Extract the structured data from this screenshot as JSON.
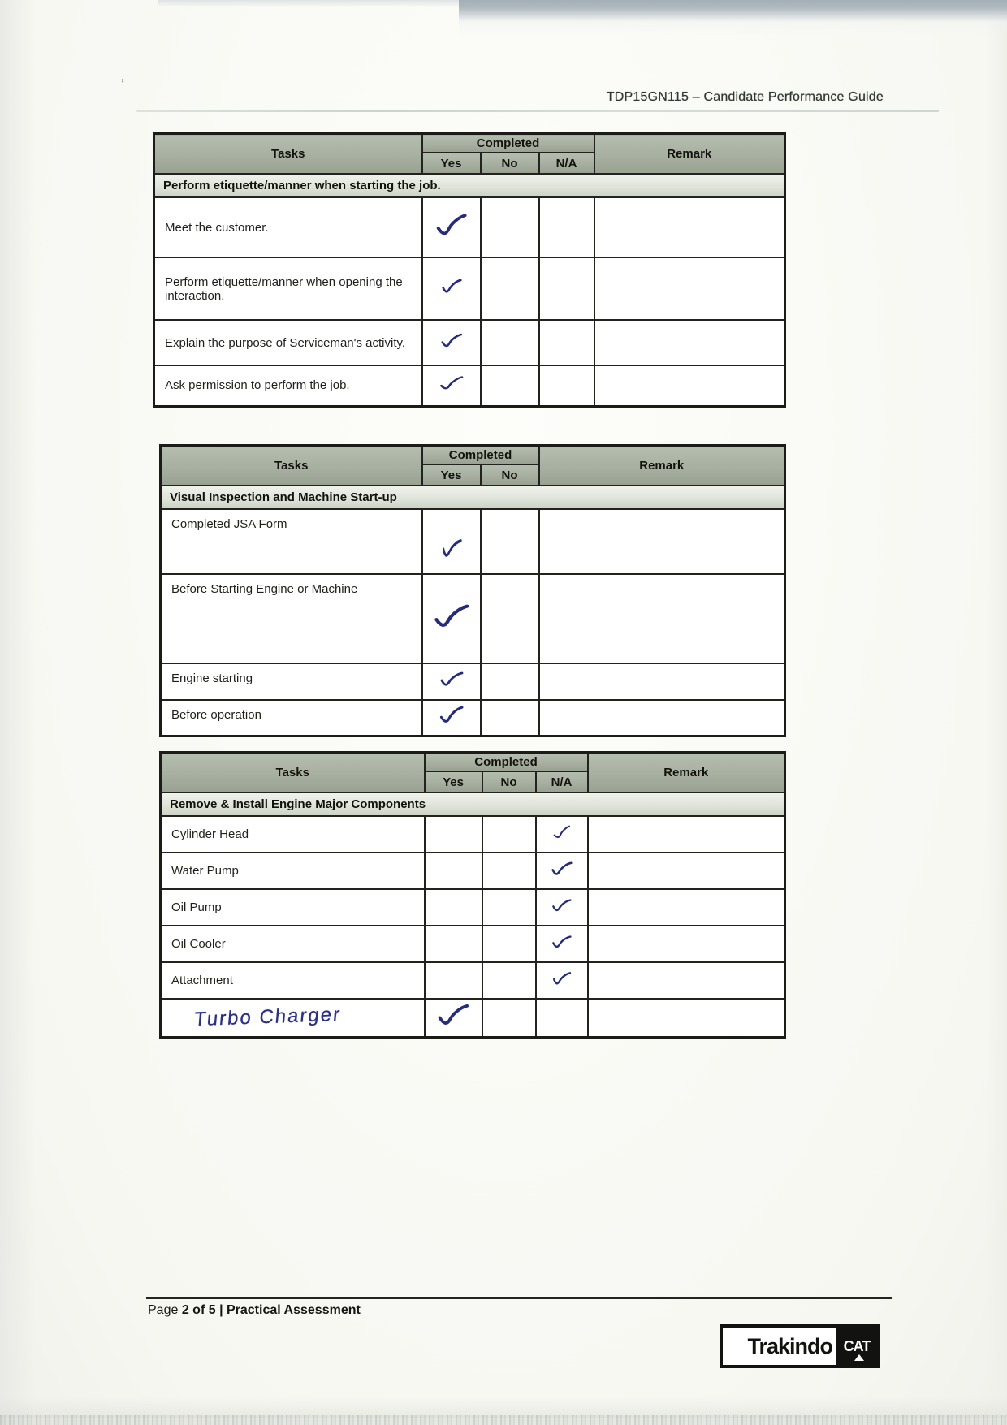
{
  "header": {
    "title": "TDP15GN115 – Candidate Performance Guide"
  },
  "footer": {
    "prefix": "Page",
    "rest": "2 of 5 | Practical Assessment"
  },
  "logo": {
    "brand": "Trakindo",
    "mark": "CAT"
  },
  "colors": {
    "ink_blue": "#252c7e",
    "header_green": "#a7afa0",
    "section_tint": "#dde1d6",
    "border_dark": "#22221f"
  },
  "tables": [
    {
      "headers": {
        "tasks": "Tasks",
        "completed": "Completed",
        "yes": "Yes",
        "no": "No",
        "na": "N/A",
        "remark": "Remark"
      },
      "check_columns": [
        "yes",
        "no",
        "na"
      ],
      "section": "Perform etiquette/manner when starting the job.",
      "rows": [
        {
          "task": "Meet the customer.",
          "yes": true,
          "no": false,
          "na": false,
          "remark": ""
        },
        {
          "task": "Perform etiquette/manner when opening the interaction.",
          "yes": true,
          "no": false,
          "na": false,
          "remark": ""
        },
        {
          "task": "Explain the purpose of Serviceman's activity.",
          "yes": true,
          "no": false,
          "na": false,
          "remark": ""
        },
        {
          "task": "Ask permission to perform the job.",
          "yes": true,
          "no": false,
          "na": false,
          "remark": ""
        }
      ]
    },
    {
      "headers": {
        "tasks": "Tasks",
        "completed": "Completed",
        "yes": "Yes",
        "no": "No",
        "remark": "Remark"
      },
      "check_columns": [
        "yes",
        "no"
      ],
      "section": "Visual Inspection and Machine Start-up",
      "rows": [
        {
          "task": "Completed JSA Form",
          "yes": true,
          "no": false,
          "remark": ""
        },
        {
          "task": "Before Starting Engine or Machine",
          "yes": true,
          "no": false,
          "remark": ""
        },
        {
          "task": "Engine starting",
          "yes": true,
          "no": false,
          "remark": ""
        },
        {
          "task": "Before operation",
          "yes": true,
          "no": false,
          "remark": ""
        }
      ]
    },
    {
      "headers": {
        "tasks": "Tasks",
        "completed": "Completed",
        "yes": "Yes",
        "no": "No",
        "na": "N/A",
        "remark": "Remark"
      },
      "check_columns": [
        "yes",
        "no",
        "na"
      ],
      "section": "Remove & Install Engine Major Components",
      "rows": [
        {
          "task": "Cylinder Head",
          "yes": false,
          "no": false,
          "na": true,
          "remark": ""
        },
        {
          "task": "Water Pump",
          "yes": false,
          "no": false,
          "na": true,
          "remark": ""
        },
        {
          "task": "Oil Pump",
          "yes": false,
          "no": false,
          "na": true,
          "remark": ""
        },
        {
          "task": "Oil Cooler",
          "yes": false,
          "no": false,
          "na": true,
          "remark": ""
        },
        {
          "task": "Attachment",
          "yes": false,
          "no": false,
          "na": true,
          "remark": ""
        },
        {
          "task": "Turbo Charger",
          "handwritten": true,
          "yes": true,
          "no": false,
          "na": false,
          "remark": ""
        }
      ]
    }
  ]
}
